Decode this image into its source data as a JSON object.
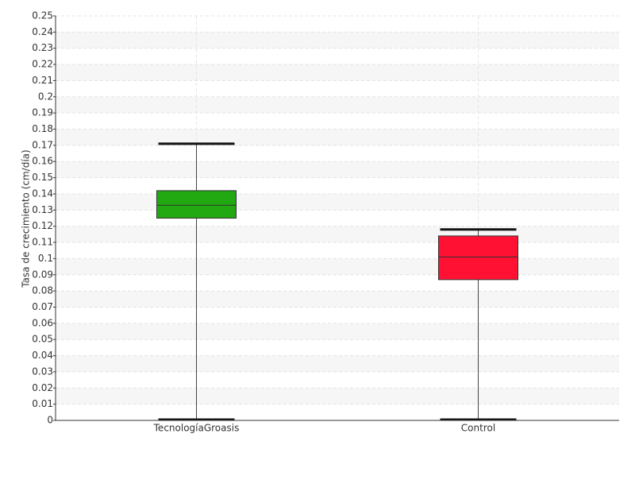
{
  "chart_data": {
    "type": "box",
    "y_label": "Tasa de crecimiento (cm/día)",
    "categories": [
      "TecnologíaGroasis",
      "Control"
    ],
    "boxes": [
      {
        "color": "#22a811",
        "min": 0,
        "q1": 0.125,
        "median": 0.133,
        "q3": 0.142,
        "max": 0.171
      },
      {
        "color": "#ff1133",
        "min": 0,
        "q1": 0.087,
        "median": 0.101,
        "q3": 0.114,
        "max": 0.118
      }
    ],
    "ylim": [
      0,
      0.25
    ],
    "yticks": [
      0,
      0.01,
      0.02,
      0.03,
      0.04,
      0.05,
      0.06,
      0.07,
      0.08,
      0.09,
      0.1,
      0.11,
      0.12,
      0.13,
      0.14,
      0.15,
      0.16,
      0.17,
      0.18,
      0.19,
      0.2,
      0.21,
      0.22,
      0.23,
      0.24,
      0.25
    ],
    "grid": true
  }
}
